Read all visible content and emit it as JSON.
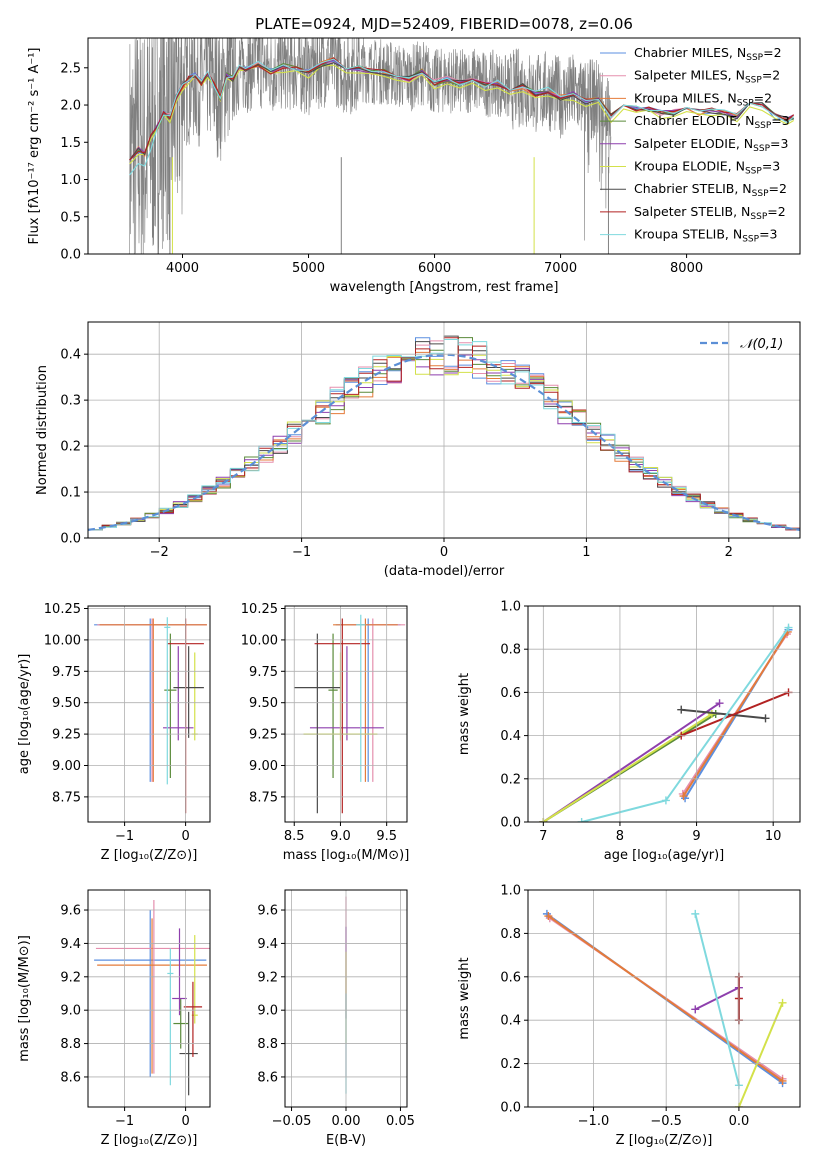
{
  "title": "PLATE=0924, MJD=52409, FIBERID=0078, z=0.06",
  "colors": {
    "chabrier_miles": "#5b8fe0",
    "salpeter_miles": "#e58fae",
    "kroupa_miles": "#e47b3a",
    "chabrier_elodie": "#5a8a3a",
    "salpeter_elodie": "#8e3fad",
    "kroupa_elodie": "#d3e14a",
    "chabrier_stelib": "#4a4a4a",
    "salpeter_stelib": "#b22222",
    "kroupa_stelib": "#7fd9de",
    "data": "#808080",
    "normal_curve": "#5b8fd6"
  },
  "chart_data": [
    {
      "id": "spectrum",
      "type": "line",
      "title": "PLATE=0924, MJD=52409, FIBERID=0078, z=0.06",
      "xlabel": "wavelength [Angstrom, rest frame]",
      "ylabel": "Flux [fλ10⁻¹⁷ erg cm⁻² s⁻¹ A⁻¹]",
      "xlim": [
        3250,
        8900
      ],
      "ylim": [
        0,
        2.9
      ],
      "xticks": [
        "4000",
        "5000",
        "6000",
        "7000",
        "8000"
      ],
      "yticks": [
        "0.0",
        "0.5",
        "1.0",
        "1.5",
        "2.0",
        "2.5"
      ],
      "legend": "top-right",
      "series": [
        {
          "name": "Chabrier MILES, N_SSP=2",
          "label": "Chabrier MILES, N",
          "sub": "SSP",
          "suffix": "=2",
          "color_key": "chabrier_miles"
        },
        {
          "name": "Salpeter MILES, N_SSP=2",
          "label": "Salpeter MILES, N",
          "sub": "SSP",
          "suffix": "=2",
          "color_key": "salpeter_miles"
        },
        {
          "name": "Kroupa MILES, N_SSP=2",
          "label": "Kroupa MILES, N",
          "sub": "SSP",
          "suffix": "=2",
          "color_key": "kroupa_miles"
        },
        {
          "name": "Chabrier ELODIE, N_SSP=3",
          "label": "Chabrier ELODIE, N",
          "sub": "SSP",
          "suffix": "=3",
          "color_key": "chabrier_elodie"
        },
        {
          "name": "Salpeter ELODIE, N_SSP=3",
          "label": "Salpeter ELODIE, N",
          "sub": "SSP",
          "suffix": "=3",
          "color_key": "salpeter_elodie"
        },
        {
          "name": "Kroupa ELODIE, N_SSP=3",
          "label": "Kroupa ELODIE, N",
          "sub": "SSP",
          "suffix": "=3",
          "color_key": "kroupa_elodie"
        },
        {
          "name": "Chabrier STELIB, N_SSP=2",
          "label": "Chabrier STELIB, N",
          "sub": "SSP",
          "suffix": "=2",
          "color_key": "chabrier_stelib"
        },
        {
          "name": "Salpeter STELIB, N_SSP=2",
          "label": "Salpeter STELIB, N",
          "sub": "SSP",
          "suffix": "=2",
          "color_key": "salpeter_stelib"
        },
        {
          "name": "Kroupa STELIB, N_SSP=3",
          "label": "Kroupa STELIB, N",
          "sub": "SSP",
          "suffix": "=3",
          "color_key": "kroupa_stelib"
        }
      ],
      "model_x": [
        3580,
        3650,
        3700,
        3750,
        3800,
        3850,
        3900,
        3950,
        4000,
        4050,
        4100,
        4150,
        4200,
        4250,
        4300,
        4350,
        4400,
        4450,
        4500,
        4600,
        4700,
        4800,
        4900,
        5000,
        5100,
        5200,
        5300,
        5400,
        5500,
        5600,
        5700,
        5800,
        5900,
        6000,
        6100,
        6200,
        6300,
        6400,
        6500,
        6600,
        6700,
        6800,
        6900,
        7000,
        7100,
        7200,
        7300,
        7400,
        7500,
        7600,
        7700,
        7800,
        7900,
        8000,
        8100,
        8200,
        8300,
        8400,
        8500,
        8600,
        8700,
        8800,
        8850
      ],
      "model_y": [
        1.3,
        1.4,
        1.35,
        1.6,
        1.7,
        1.9,
        1.85,
        2.1,
        2.25,
        2.35,
        2.4,
        2.3,
        2.42,
        2.28,
        2.1,
        2.4,
        2.35,
        2.5,
        2.48,
        2.55,
        2.45,
        2.52,
        2.5,
        2.45,
        2.55,
        2.6,
        2.45,
        2.5,
        2.45,
        2.45,
        2.4,
        2.35,
        2.45,
        2.3,
        2.35,
        2.3,
        2.35,
        2.28,
        2.3,
        2.2,
        2.25,
        2.15,
        2.2,
        2.1,
        2.15,
        2.05,
        2.1,
        1.85,
        2.0,
        1.95,
        1.95,
        1.9,
        1.9,
        1.95,
        1.9,
        1.92,
        1.9,
        1.85,
        2.05,
        2.0,
        1.85,
        1.8,
        1.85
      ],
      "data_range_x": [
        3580,
        7400
      ],
      "data_drops": [
        3900,
        3920,
        5260,
        6790,
        7380
      ]
    },
    {
      "id": "residuals",
      "type": "histogram",
      "xlabel": "(data-model)/error",
      "ylabel": "Normed distribution",
      "xlim": [
        -2.5,
        2.5
      ],
      "ylim": [
        0,
        0.47
      ],
      "xticks": [
        "−2",
        "−1",
        "0",
        "1",
        "2"
      ],
      "yticks": [
        "0.0",
        "0.1",
        "0.2",
        "0.3",
        "0.4"
      ],
      "legend_label": "𝒩(0,1)",
      "legend": "top-right",
      "bin_width": 0.1,
      "normal_curve": {
        "mean": 0,
        "sigma": 1
      }
    },
    {
      "id": "age_vs_z",
      "type": "errorbar",
      "xlabel": "Z [log₁₀(Z/Z⊙)]",
      "ylabel": "age  [log₁₀(age/yr)]",
      "xlim": [
        -1.6,
        0.4
      ],
      "ylim": [
        8.55,
        10.27
      ],
      "xticks": [
        "−1",
        "0"
      ],
      "yticks": [
        "8.75",
        "9.00",
        "9.25",
        "9.50",
        "9.75",
        "10.00",
        "10.25"
      ],
      "points": [
        {
          "c": "chabrier_miles",
          "x": -0.58,
          "y": 10.12,
          "xe": 0.92,
          "ye": [
            1.25,
            0.05
          ]
        },
        {
          "c": "salpeter_miles",
          "x": -0.55,
          "y": 10.12,
          "xe": 0.9,
          "ye": [
            1.25,
            0.05
          ]
        },
        {
          "c": "kroupa_miles",
          "x": -0.53,
          "y": 10.12,
          "xe": 0.88,
          "ye": [
            1.25,
            0.05
          ]
        },
        {
          "c": "chabrier_elodie",
          "x": -0.25,
          "y": 9.6,
          "xe": 0.1,
          "ye": [
            0.7,
            0.45
          ]
        },
        {
          "c": "salpeter_elodie",
          "x": -0.12,
          "y": 9.3,
          "xe": 0.25,
          "ye": [
            0.1,
            0.65
          ]
        },
        {
          "c": "kroupa_elodie",
          "x": 0.15,
          "y": 9.25,
          "xe": 0.05,
          "ye": [
            0.05,
            0.65
          ]
        },
        {
          "c": "chabrier_stelib",
          "x": 0.05,
          "y": 9.62,
          "xe": 0.25,
          "ye": [
            0.4,
            0.33
          ]
        },
        {
          "c": "salpeter_stelib",
          "x": 0.0,
          "y": 9.97,
          "xe": 0.3,
          "ye": [
            1.35,
            0.2
          ]
        },
        {
          "c": "kroupa_stelib",
          "x": -0.3,
          "y": 10.1,
          "xe": 0.05,
          "ye": [
            1.25,
            0.08
          ]
        }
      ]
    },
    {
      "id": "age_vs_mass",
      "type": "errorbar",
      "xlabel": "mass [log₁₀(M/M⊙)]",
      "ylabel": "",
      "xlim": [
        8.4,
        9.72
      ],
      "ylim": [
        8.55,
        10.27
      ],
      "xticks": [
        "8.5",
        "9.0",
        "9.5"
      ],
      "yticks": [
        "8.75",
        "9.00",
        "9.25",
        "9.50",
        "9.75",
        "10.00",
        "10.25"
      ],
      "points": [
        {
          "c": "chabrier_miles",
          "x": 9.3,
          "y": 10.12,
          "xe": 0.35,
          "ye": [
            1.25,
            0.05
          ]
        },
        {
          "c": "salpeter_miles",
          "x": 9.35,
          "y": 10.12,
          "xe": 0.35,
          "ye": [
            1.25,
            0.05
          ]
        },
        {
          "c": "kroupa_miles",
          "x": 9.27,
          "y": 10.12,
          "xe": 0.35,
          "ye": [
            1.25,
            0.05
          ]
        },
        {
          "c": "chabrier_elodie",
          "x": 8.92,
          "y": 9.6,
          "xe": 0.05,
          "ye": [
            0.7,
            0.45
          ]
        },
        {
          "c": "salpeter_elodie",
          "x": 9.07,
          "y": 9.3,
          "xe": 0.4,
          "ye": [
            0.1,
            0.65
          ]
        },
        {
          "c": "kroupa_elodie",
          "x": 9.0,
          "y": 9.25,
          "xe": 0.4,
          "ye": [
            0.05,
            0.65
          ]
        },
        {
          "c": "chabrier_stelib",
          "x": 8.75,
          "y": 9.62,
          "xe": 0.25,
          "ye": [
            1.0,
            0.43
          ]
        },
        {
          "c": "salpeter_stelib",
          "x": 9.02,
          "y": 9.97,
          "xe": 0.3,
          "ye": [
            1.35,
            0.2
          ]
        },
        {
          "c": "kroupa_stelib",
          "x": 9.22,
          "y": 10.12,
          "xe": 0.05,
          "ye": [
            1.25,
            0.08
          ]
        }
      ]
    },
    {
      "id": "weight_vs_age",
      "type": "line",
      "xlabel": "age  [log₁₀(age/yr)]",
      "ylabel": "mass weight",
      "xlim": [
        6.8,
        10.35
      ],
      "ylim": [
        0,
        1.0
      ],
      "xticks": [
        "7",
        "8",
        "9",
        "10"
      ],
      "yticks": [
        "0.0",
        "0.2",
        "0.4",
        "0.6",
        "0.8",
        "1.0"
      ],
      "series": [
        {
          "c": "chabrier_miles",
          "pts": [
            [
              8.85,
              0.11
            ],
            [
              10.2,
              0.89
            ]
          ]
        },
        {
          "c": "salpeter_miles",
          "pts": [
            [
              8.82,
              0.13
            ],
            [
              10.18,
              0.87
            ]
          ]
        },
        {
          "c": "kroupa_miles",
          "pts": [
            [
              8.83,
              0.12
            ],
            [
              10.19,
              0.88
            ]
          ]
        },
        {
          "c": "chabrier_elodie",
          "pts": [
            [
              7.0,
              0.0
            ],
            [
              9.25,
              0.5
            ]
          ]
        },
        {
          "c": "salpeter_elodie",
          "pts": [
            [
              7.0,
              0.0
            ],
            [
              9.3,
              0.55
            ]
          ]
        },
        {
          "c": "kroupa_elodie",
          "pts": [
            [
              7.0,
              0.0
            ],
            [
              9.2,
              0.5
            ]
          ]
        },
        {
          "c": "chabrier_stelib",
          "pts": [
            [
              8.8,
              0.52
            ],
            [
              9.9,
              0.48
            ]
          ]
        },
        {
          "c": "salpeter_stelib",
          "pts": [
            [
              8.8,
              0.4
            ],
            [
              10.2,
              0.6
            ]
          ]
        },
        {
          "c": "kroupa_stelib",
          "pts": [
            [
              7.5,
              0.0
            ],
            [
              8.6,
              0.1
            ],
            [
              10.2,
              0.9
            ]
          ]
        }
      ]
    },
    {
      "id": "mass_vs_z",
      "type": "errorbar",
      "xlabel": "Z [log₁₀(Z/Z⊙)]",
      "ylabel": "mass [log₁₀(M/M⊙)]",
      "xlim": [
        -1.6,
        0.4
      ],
      "ylim": [
        8.42,
        9.72
      ],
      "xticks": [
        "−1",
        "0"
      ],
      "yticks": [
        "8.6",
        "8.8",
        "9.0",
        "9.2",
        "9.4",
        "9.6"
      ],
      "points": [
        {
          "c": "chabrier_miles",
          "x": -0.58,
          "y": 9.3,
          "xe": 0.92,
          "ye": [
            0.7,
            0.3
          ]
        },
        {
          "c": "salpeter_miles",
          "x": -0.52,
          "y": 9.37,
          "xe": 0.95,
          "ye": [
            0.75,
            0.29
          ]
        },
        {
          "c": "kroupa_miles",
          "x": -0.55,
          "y": 9.27,
          "xe": 0.9,
          "ye": [
            0.65,
            0.28
          ]
        },
        {
          "c": "chabrier_elodie",
          "x": -0.08,
          "y": 8.92,
          "xe": 0.12,
          "ye": [
            0.15,
            0.15
          ]
        },
        {
          "c": "salpeter_elodie",
          "x": -0.1,
          "y": 9.07,
          "xe": 0.12,
          "ye": [
            0.1,
            0.42
          ]
        },
        {
          "c": "kroupa_elodie",
          "x": 0.15,
          "y": 8.97,
          "xe": 0.05,
          "ye": [
            0.05,
            0.48
          ]
        },
        {
          "c": "chabrier_stelib",
          "x": 0.05,
          "y": 8.74,
          "xe": 0.15,
          "ye": [
            0.25,
            0.25
          ]
        },
        {
          "c": "salpeter_stelib",
          "x": 0.12,
          "y": 9.02,
          "xe": 0.15,
          "ye": [
            0.3,
            0.15
          ]
        },
        {
          "c": "kroupa_stelib",
          "x": -0.25,
          "y": 9.22,
          "xe": 0.05,
          "ye": [
            0.67,
            0.15
          ]
        }
      ]
    },
    {
      "id": "mass_vs_ebv",
      "type": "errorbar",
      "xlabel": "E(B-V)",
      "ylabel": "",
      "xlim": [
        -0.056,
        0.056
      ],
      "ylim": [
        8.42,
        9.72
      ],
      "xticks": [
        "−0.05",
        "0.00",
        "0.05"
      ],
      "yticks": [
        "8.6",
        "8.8",
        "9.0",
        "9.2",
        "9.4",
        "9.6"
      ],
      "points": [
        {
          "c": "salpeter_miles",
          "x": 0,
          "y": 9.5,
          "xe": 0,
          "ye": [
            0.9,
            0.18
          ]
        },
        {
          "c": "salpeter_elodie",
          "x": 0,
          "y": 9.45,
          "xe": 0,
          "ye": [
            0.5,
            0.05
          ]
        },
        {
          "c": "kroupa_elodie",
          "x": 0,
          "y": 9.3,
          "xe": 0,
          "ye": [
            0.5,
            0.05
          ]
        },
        {
          "c": "kroupa_stelib",
          "x": 0,
          "y": 9.0,
          "xe": 0,
          "ye": [
            0.5,
            0.1
          ]
        }
      ]
    },
    {
      "id": "weight_vs_z",
      "type": "line",
      "xlabel": "Z [log₁₀(Z/Z⊙)]",
      "ylabel": "mass weight",
      "xlim": [
        -1.45,
        0.42
      ],
      "ylim": [
        0,
        1.0
      ],
      "xticks": [
        "−1.0",
        "−0.5",
        "0.0"
      ],
      "yticks": [
        "0.0",
        "0.2",
        "0.4",
        "0.6",
        "0.8",
        "1.0"
      ],
      "series": [
        {
          "c": "chabrier_miles",
          "pts": [
            [
              -1.32,
              0.89
            ],
            [
              0.3,
              0.11
            ]
          ]
        },
        {
          "c": "salpeter_miles",
          "pts": [
            [
              -1.3,
              0.87
            ],
            [
              0.3,
              0.13
            ]
          ]
        },
        {
          "c": "kroupa_miles",
          "pts": [
            [
              -1.31,
              0.88
            ],
            [
              0.3,
              0.12
            ]
          ]
        },
        {
          "c": "salpeter_elodie",
          "pts": [
            [
              -0.3,
              0.45
            ],
            [
              0.0,
              0.55
            ]
          ]
        },
        {
          "c": "kroupa_elodie",
          "pts": [
            [
              0.0,
              0.0
            ],
            [
              0.3,
              0.48
            ]
          ]
        },
        {
          "c": "chabrier_stelib",
          "pts": [
            [
              0.0,
              0.4
            ],
            [
              0.0,
              0.6
            ]
          ]
        },
        {
          "c": "salpeter_stelib",
          "pts": [
            [
              0.0,
              0.6
            ],
            [
              0.0,
              0.4
            ],
            [
              0.0,
              0.5
            ]
          ]
        },
        {
          "c": "kroupa_stelib",
          "pts": [
            [
              -0.3,
              0.89
            ],
            [
              0.0,
              0.1
            ]
          ]
        }
      ]
    }
  ]
}
